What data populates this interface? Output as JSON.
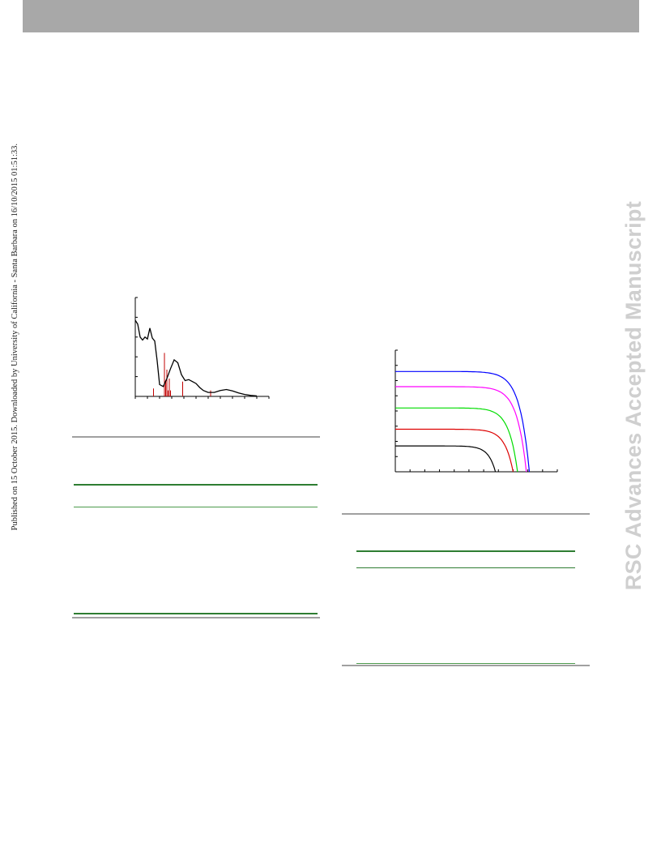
{
  "page": {
    "publication_note": "Published on 15 October 2015. Downloaded by University of California - Santa Barbara on 16/10/2015 01:51:33.",
    "watermark": "RSC Advances Accepted Manuscript"
  },
  "colors": {
    "header_bar": "#a8a8a8",
    "table_rule_gray": "#a0a0a0",
    "table_rule_green": "#2e7d32",
    "watermark": "#cfcfcf"
  },
  "chart_data": [
    {
      "type": "line",
      "title": "",
      "xlabel": "",
      "ylabel": "",
      "xlim": [
        0,
        11
      ],
      "ylim": [
        0,
        10
      ],
      "grid": false,
      "series": [
        {
          "color": "#000000",
          "x": [
            0,
            0.2,
            0.4,
            0.6,
            0.8,
            1.0,
            1.2,
            1.4,
            1.6,
            1.8,
            2.0,
            2.3,
            2.6,
            2.9,
            3.2,
            3.5,
            3.8,
            4.1,
            4.4,
            4.7,
            5.0,
            5.3,
            5.6,
            6.0,
            6.5,
            7.0,
            7.5,
            8.0,
            8.5,
            9.0,
            9.5,
            10.0
          ],
          "values": [
            7.7,
            7.3,
            6.0,
            5.7,
            6.0,
            5.8,
            6.9,
            5.9,
            5.6,
            3.6,
            1.2,
            1.0,
            1.8,
            2.8,
            3.7,
            3.4,
            2.2,
            1.6,
            1.7,
            1.5,
            1.3,
            0.9,
            0.6,
            0.4,
            0.4,
            0.6,
            0.7,
            0.55,
            0.35,
            0.2,
            0.1,
            0.05
          ]
        }
      ],
      "stems": {
        "color": "#c00000",
        "x": [
          1.5,
          2.4,
          2.5,
          2.6,
          2.7,
          2.8,
          2.9,
          3.9,
          6.2
        ],
        "values": [
          0.8,
          4.4,
          1.5,
          2.7,
          0.6,
          1.8,
          0.6,
          1.5,
          0.6
        ]
      }
    },
    {
      "type": "line",
      "title": "",
      "xlabel": "",
      "ylabel": "",
      "xlim": [
        0,
        11
      ],
      "ylim": [
        0,
        8
      ],
      "grid": false,
      "series": [
        {
          "color": "#0000ff",
          "jsc": 6.6,
          "voc": 9.1
        },
        {
          "color": "#ff00ff",
          "jsc": 5.6,
          "voc": 8.9
        },
        {
          "color": "#00dd00",
          "jsc": 4.2,
          "voc": 8.3
        },
        {
          "color": "#dd0000",
          "jsc": 2.8,
          "voc": 8.0
        },
        {
          "color": "#000000",
          "jsc": 1.7,
          "voc": 6.8
        }
      ]
    }
  ]
}
